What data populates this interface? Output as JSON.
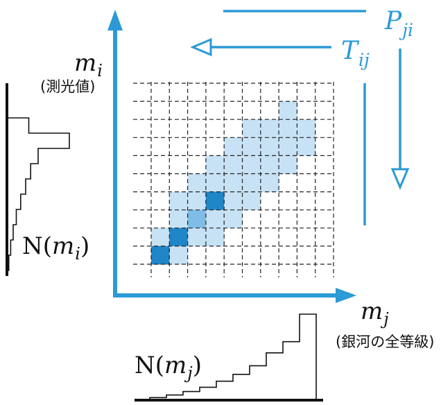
{
  "colors": {
    "accent": "#2b9ad6",
    "cell_dark": "#1f86c8",
    "cell_mid": "#7fbde6",
    "cell_light": "#c8e2f5",
    "ink": "#111111",
    "grid": "#222222"
  },
  "labels": {
    "p_ji": {
      "main": "P",
      "sub": "ji"
    },
    "t_ij": {
      "main": "T",
      "sub": "ij"
    },
    "m_i": {
      "main": "m",
      "sub": "i",
      "note": "(測光値)"
    },
    "m_j": {
      "main": "m",
      "sub": "j",
      "note": "(銀河の全等級)"
    },
    "n_mi": {
      "pre": "N(",
      "var": "m",
      "sub": "i",
      "post": ")"
    },
    "n_mj": {
      "pre": "N(",
      "var": "m",
      "sub": "j",
      "post": ")"
    }
  },
  "matrix": {
    "rows": 10,
    "cols": 10,
    "cells": [
      {
        "r": 0,
        "c": 7,
        "level": "light"
      },
      {
        "r": 1,
        "c": 5,
        "level": "light"
      },
      {
        "r": 1,
        "c": 6,
        "level": "light"
      },
      {
        "r": 1,
        "c": 7,
        "level": "light"
      },
      {
        "r": 1,
        "c": 8,
        "level": "light"
      },
      {
        "r": 2,
        "c": 4,
        "level": "light"
      },
      {
        "r": 2,
        "c": 5,
        "level": "light"
      },
      {
        "r": 2,
        "c": 6,
        "level": "light"
      },
      {
        "r": 2,
        "c": 7,
        "level": "light"
      },
      {
        "r": 2,
        "c": 8,
        "level": "light"
      },
      {
        "r": 3,
        "c": 3,
        "level": "light"
      },
      {
        "r": 3,
        "c": 4,
        "level": "light"
      },
      {
        "r": 3,
        "c": 5,
        "level": "light"
      },
      {
        "r": 3,
        "c": 6,
        "level": "light"
      },
      {
        "r": 3,
        "c": 7,
        "level": "light"
      },
      {
        "r": 4,
        "c": 2,
        "level": "light"
      },
      {
        "r": 4,
        "c": 3,
        "level": "light"
      },
      {
        "r": 4,
        "c": 4,
        "level": "light"
      },
      {
        "r": 4,
        "c": 5,
        "level": "light"
      },
      {
        "r": 4,
        "c": 6,
        "level": "light"
      },
      {
        "r": 5,
        "c": 1,
        "level": "light"
      },
      {
        "r": 5,
        "c": 2,
        "level": "light"
      },
      {
        "r": 5,
        "c": 3,
        "level": "dark"
      },
      {
        "r": 5,
        "c": 4,
        "level": "light"
      },
      {
        "r": 5,
        "c": 5,
        "level": "light"
      },
      {
        "r": 6,
        "c": 1,
        "level": "light"
      },
      {
        "r": 6,
        "c": 2,
        "level": "mid"
      },
      {
        "r": 6,
        "c": 3,
        "level": "light"
      },
      {
        "r": 6,
        "c": 4,
        "level": "light"
      },
      {
        "r": 7,
        "c": 0,
        "level": "light"
      },
      {
        "r": 7,
        "c": 1,
        "level": "dark"
      },
      {
        "r": 7,
        "c": 2,
        "level": "light"
      },
      {
        "r": 7,
        "c": 3,
        "level": "light"
      },
      {
        "r": 8,
        "c": 0,
        "level": "dark"
      },
      {
        "r": 8,
        "c": 1,
        "level": "light"
      }
    ]
  },
  "histograms": {
    "n_mi": [
      0.35,
      1.0,
      0.5,
      0.38,
      0.3,
      0.22,
      0.15,
      0.1,
      0.06,
      0.03
    ],
    "n_mj": [
      0.03,
      0.06,
      0.1,
      0.15,
      0.22,
      0.3,
      0.4,
      0.55,
      0.68,
      1.0
    ]
  }
}
